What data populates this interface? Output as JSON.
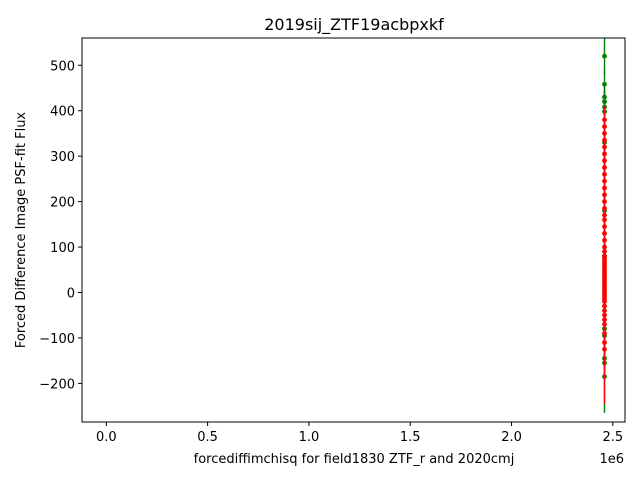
{
  "chart_data": {
    "type": "scatter",
    "title": "2019sij_ZTF19acbpxkf",
    "xlabel": "forcediffimchisq for field1830 ZTF_r and 2020cmj",
    "ylabel": "Forced Difference Image PSF-fit Flux",
    "x_offset_label": "1e6",
    "xlim": [
      -120000,
      2560000
    ],
    "ylim": [
      -285,
      560
    ],
    "x_ticks": [
      0.0,
      0.5,
      1.0,
      1.5,
      2.0,
      2.5
    ],
    "x_tick_labels": [
      "0.0",
      "0.5",
      "1.0",
      "1.5",
      "2.0",
      "2.5"
    ],
    "y_ticks": [
      -200,
      -100,
      0,
      100,
      200,
      300,
      400,
      500
    ],
    "y_tick_labels": [
      "−200",
      "−100",
      "0",
      "100",
      "200",
      "300",
      "400",
      "500"
    ],
    "grid": false,
    "colors": {
      "green": "#008000",
      "red": "#ff0000"
    },
    "series": [
      {
        "color": "green",
        "x": [
          2458800,
          2458800,
          2458800,
          2458800,
          2458800,
          2458800,
          2458800,
          2458800,
          2458800,
          2458800,
          2458800,
          2458800,
          2458800,
          2458800
        ],
        "y": [
          520,
          458,
          430,
          420,
          408,
          398,
          330,
          180,
          80,
          -80,
          -95,
          -145,
          -155,
          -185
        ],
        "yerr": [
          40,
          30,
          25,
          25,
          25,
          25,
          25,
          25,
          25,
          25,
          25,
          25,
          25,
          80
        ]
      },
      {
        "color": "red",
        "x": [
          2458810,
          2458810,
          2458810,
          2458810,
          2458810,
          2458810,
          2458810,
          2458810,
          2458810,
          2458810,
          2458810,
          2458810,
          2458810,
          2458810,
          2458810,
          2458810,
          2458810,
          2458810,
          2458810,
          2458810,
          2458810,
          2458810,
          2458810,
          2458810,
          2458810,
          2458810,
          2458810,
          2458810,
          2458810,
          2458810,
          2458810,
          2458810,
          2458810,
          2458810,
          2458810,
          2458810,
          2458810,
          2458810,
          2458810,
          2458810,
          2458810,
          2458810,
          2458810,
          2458810,
          2458810,
          2458810,
          2458810,
          2458810,
          2458810,
          2458810
        ],
        "y": [
          380,
          365,
          350,
          335,
          320,
          305,
          290,
          275,
          260,
          245,
          230,
          215,
          200,
          185,
          170,
          160,
          145,
          130,
          115,
          100,
          90,
          80,
          70,
          60,
          50,
          40,
          30,
          20,
          10,
          0,
          -10,
          -20,
          -30,
          -40,
          -50,
          -60,
          -70,
          -90,
          -110,
          -125,
          15,
          5,
          -5,
          -15,
          25,
          35,
          45,
          55,
          65,
          75
        ],
        "yerr": [
          30,
          30,
          30,
          30,
          30,
          30,
          30,
          30,
          30,
          30,
          30,
          30,
          30,
          30,
          30,
          30,
          30,
          30,
          30,
          30,
          30,
          30,
          30,
          30,
          30,
          30,
          30,
          30,
          30,
          30,
          30,
          30,
          30,
          30,
          30,
          30,
          30,
          40,
          60,
          120,
          30,
          30,
          30,
          30,
          30,
          30,
          30,
          30,
          30,
          30
        ]
      }
    ]
  }
}
